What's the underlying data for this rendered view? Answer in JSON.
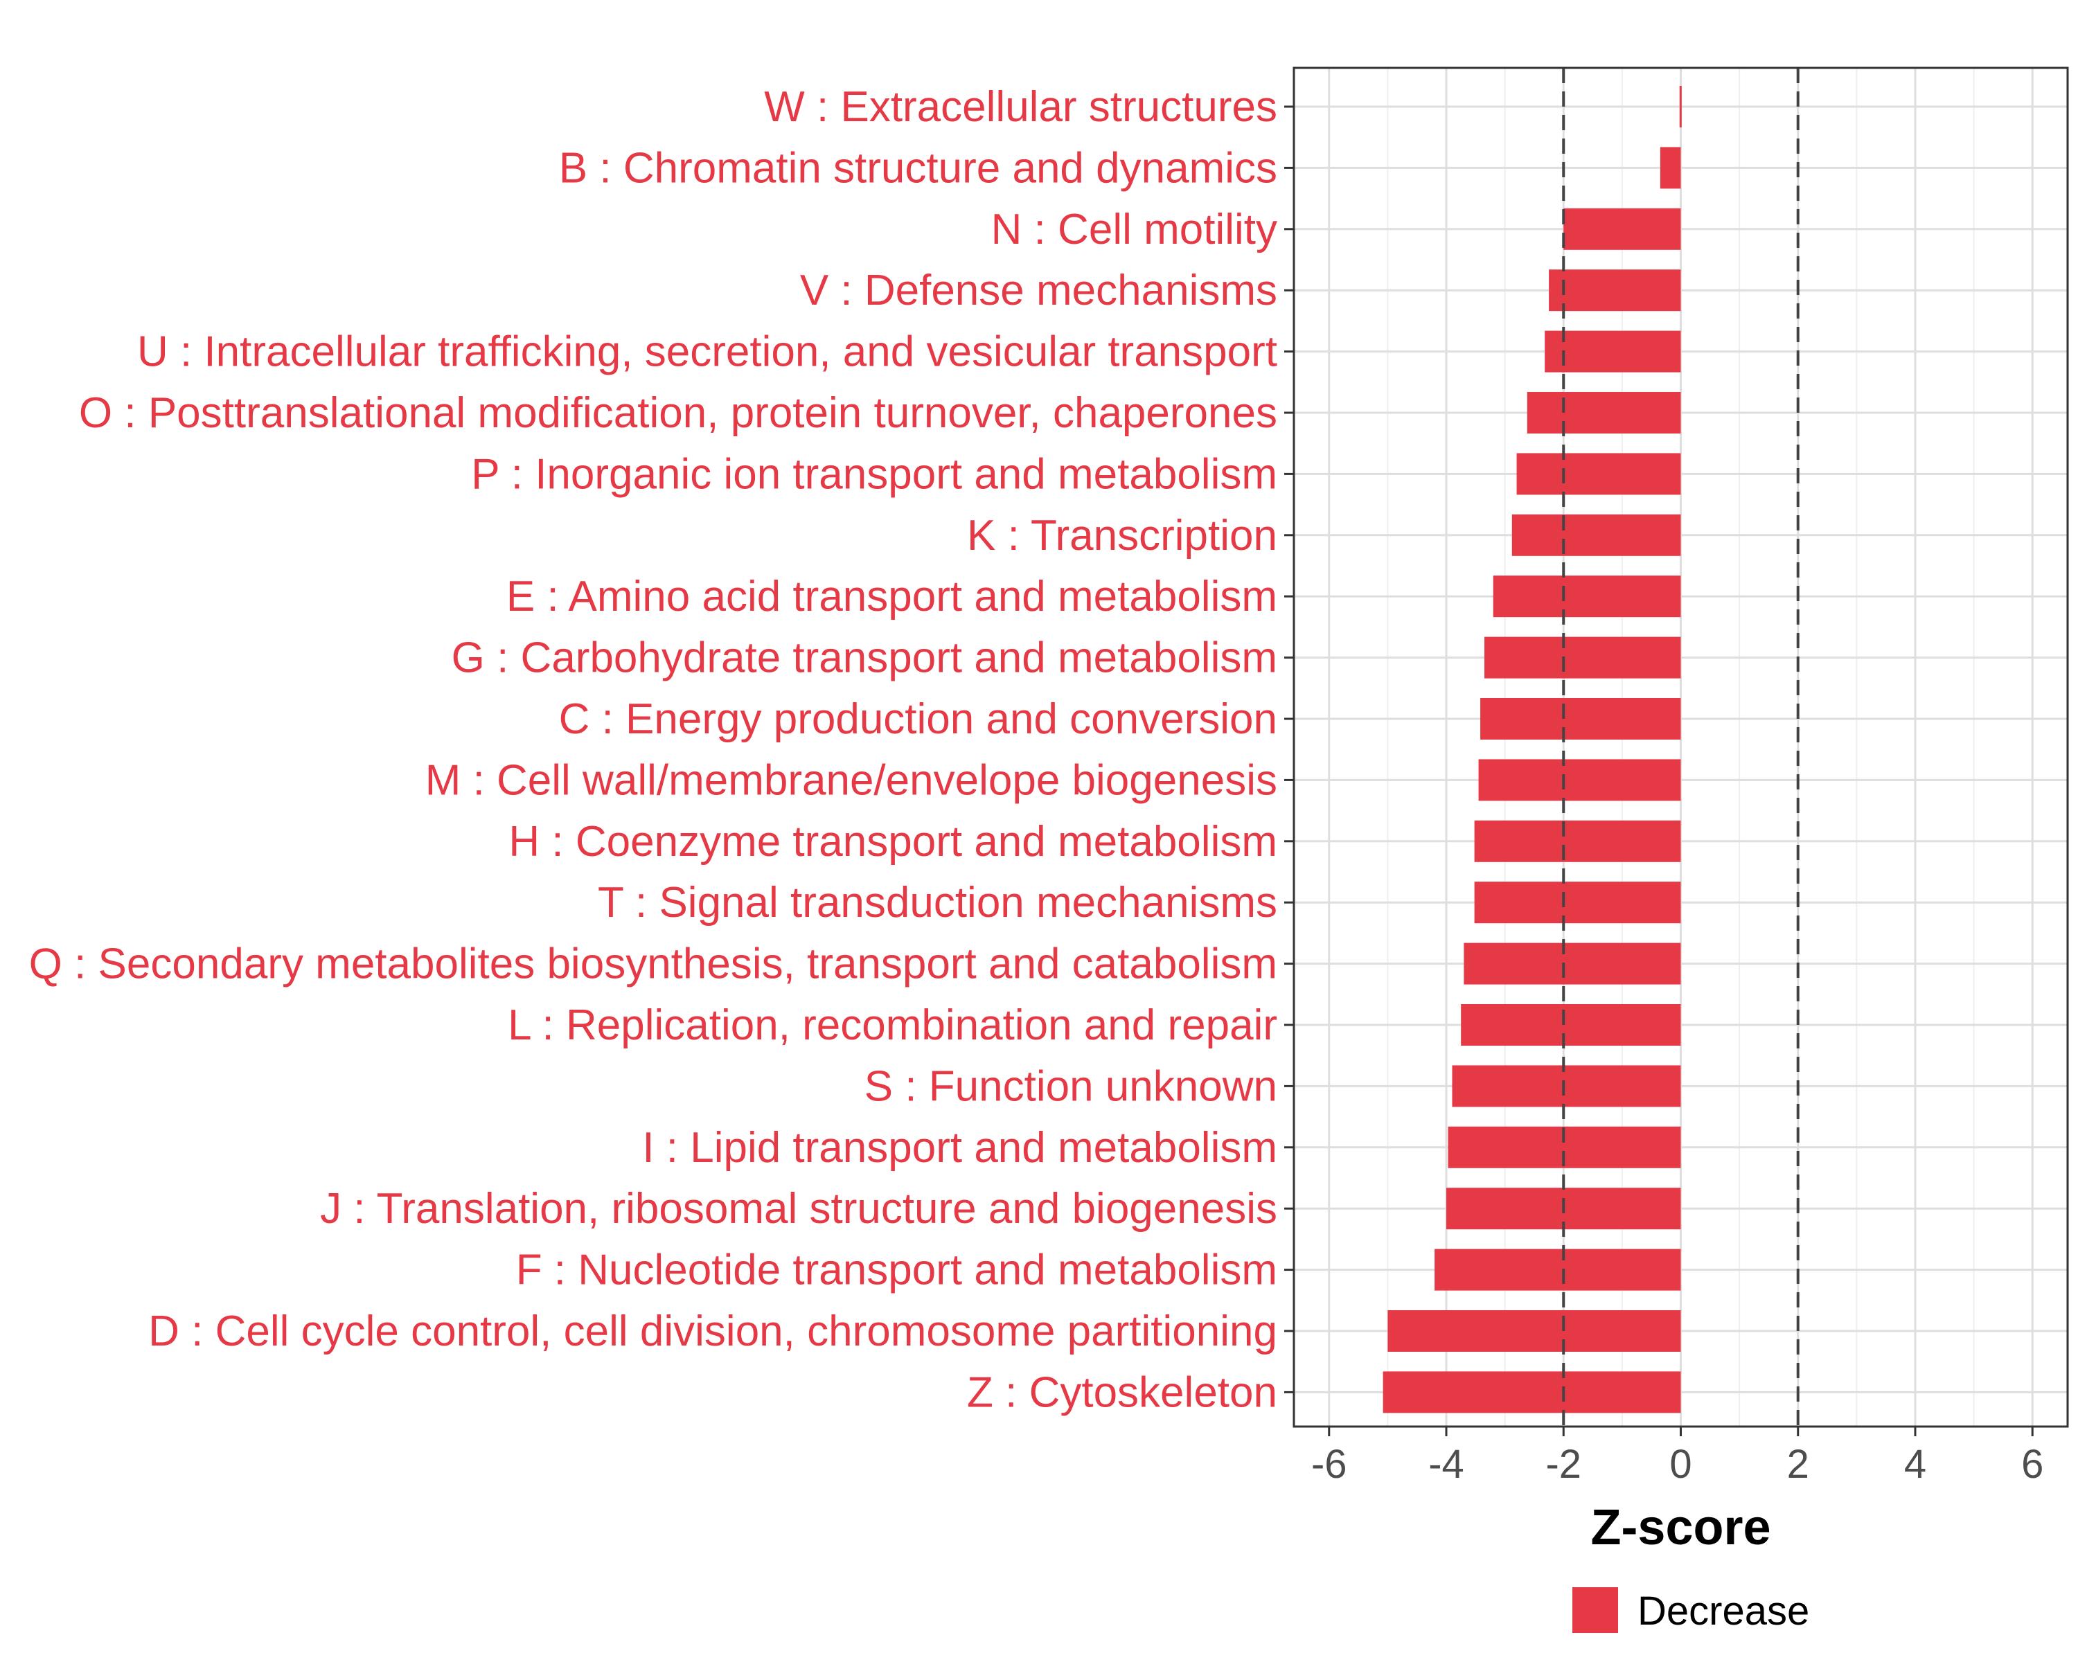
{
  "chart_data": {
    "type": "bar",
    "orientation": "horizontal",
    "categories": [
      "W : Extracellular structures",
      "B : Chromatin structure and dynamics",
      "N : Cell motility",
      "V : Defense mechanisms",
      "U : Intracellular trafficking, secretion, and vesicular transport",
      "O : Posttranslational modification, protein turnover, chaperones",
      "P : Inorganic ion transport and metabolism",
      "K : Transcription",
      "E : Amino acid transport and metabolism",
      "G : Carbohydrate transport and metabolism",
      "C : Energy production and conversion",
      "M : Cell wall/membrane/envelope biogenesis",
      "H : Coenzyme transport and metabolism",
      "T : Signal transduction mechanisms",
      "Q : Secondary metabolites biosynthesis, transport and catabolism",
      "L : Replication, recombination and repair",
      "S : Function unknown",
      "I : Lipid transport and metabolism",
      "J : Translation, ribosomal structure and biogenesis",
      "F : Nucleotide transport and metabolism",
      "D : Cell cycle control, cell division, chromosome partitioning",
      "Z : Cytoskeleton"
    ],
    "series": [
      {
        "name": "Decrease",
        "color": "#E63946",
        "values": [
          -0.02,
          -0.35,
          -2.0,
          -2.25,
          -2.32,
          -2.62,
          -2.8,
          -2.88,
          -3.2,
          -3.35,
          -3.42,
          -3.45,
          -3.52,
          -3.52,
          -3.7,
          -3.75,
          -3.9,
          -3.97,
          -4.0,
          -4.2,
          -5.0,
          -5.08
        ]
      }
    ],
    "xlabel": "Z-score",
    "ylabel": "",
    "xlim": [
      -6.6,
      6.6
    ],
    "xticks": [
      -6,
      -4,
      -2,
      0,
      2,
      4,
      6
    ],
    "xtick_labels": [
      "-6",
      "-4",
      "-2",
      "0",
      "2",
      "4",
      "6"
    ],
    "reference_lines": [
      -2,
      2
    ],
    "legend": {
      "position": "bottom",
      "entries": [
        "Decrease"
      ]
    },
    "grid": true,
    "label_color": "#E63946",
    "text_color": "#4d4d4d"
  }
}
